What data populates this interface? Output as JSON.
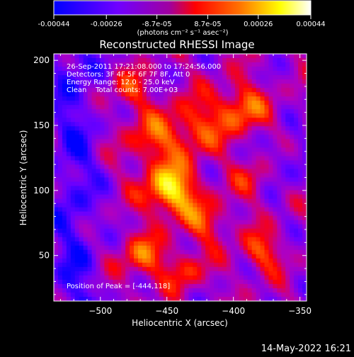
{
  "chart_data": {
    "type": "heatmap",
    "title": "Reconstructed RHESSI Image",
    "xlabel": "Heliocentric X (arcsec)",
    "ylabel": "Heliocentric Y (arcsec)",
    "xlim": [
      -535,
      -345
    ],
    "ylim": [
      15,
      205
    ],
    "x_ticks": [
      -500,
      -450,
      -400,
      -350
    ],
    "y_ticks": [
      50,
      100,
      150,
      200
    ],
    "colorbar": {
      "ticks": [
        "-0.00044",
        "-0.00026",
        "-8.7e-05",
        "8.7e-05",
        "0.00026",
        "0.00044"
      ],
      "tick_values": [
        -0.00044,
        -0.00026,
        -8.7e-05,
        8.7e-05,
        0.00026,
        0.00044
      ],
      "range": [
        -0.00044,
        0.00044
      ],
      "unit_label": "(photons cm⁻² s⁻¹ asec⁻²)",
      "colors": [
        "#0000ff",
        "#6a00ff",
        "#b000c0",
        "#ff0000",
        "#ff8000",
        "#ffff00",
        "#ffffff"
      ]
    },
    "annotations": [
      "26-Sep-2011 17:21:08.000 to 17:24:56.000",
      "Detectors: 3F 4F 5F 6F 7F 8F, Att 0",
      "Energy Range: 12.0 - 25.0 keV",
      "Clean    Total counts: 7.00E+03",
      "Position of Peak = [-444,118]"
    ],
    "peak": {
      "x": -444,
      "y": 118
    },
    "grid": false
  },
  "footer": {
    "timestamp": "14-May-2022 16:21"
  }
}
